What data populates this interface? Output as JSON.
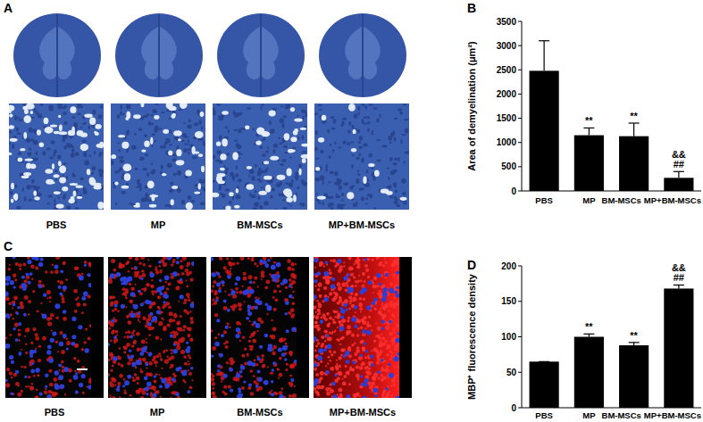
{
  "images": [
    {
      "panel": "A",
      "captions": [
        "PBS",
        "MP",
        "BM-MSCs",
        "MP+BM-MSCs"
      ]
    },
    {
      "panel": "C",
      "captions": [
        "PBS",
        "MP",
        "BM-MSCs",
        "MP+BM-MSCs"
      ]
    }
  ],
  "chart_data": [
    {
      "type": "bar",
      "panel": "B",
      "y_label": "Area of demyelination (μm²)",
      "categories": [
        "PBS",
        "MP",
        "BM-MSCs",
        "MP+BM-MSCs"
      ],
      "values": [
        2480,
        1150,
        1130,
        270
      ],
      "errors": [
        620,
        150,
        270,
        130
      ],
      "color": "#000000",
      "ylim": [
        0,
        3500
      ],
      "yticks": [
        0,
        500,
        1000,
        1500,
        2000,
        2500,
        3000,
        3500
      ],
      "annotations": [
        {
          "category": "MP",
          "text": "**"
        },
        {
          "category": "BM-MSCs",
          "text": "**"
        },
        {
          "category": "MP+BM-MSCs",
          "text": "##"
        },
        {
          "category": "MP+BM-MSCs",
          "text": "&&"
        }
      ]
    },
    {
      "type": "bar",
      "panel": "D",
      "y_label": "MBP⁺ fluorescence density",
      "categories": [
        "PBS",
        "MP",
        "BM-MSCs",
        "MP+BM-MSCs"
      ],
      "values": [
        65,
        100,
        88,
        168
      ],
      "errors": [
        0,
        4,
        4,
        5
      ],
      "color": "#000000",
      "ylim": [
        0,
        200
      ],
      "yticks": [
        0,
        50,
        100,
        150,
        200
      ],
      "annotations": [
        {
          "category": "MP",
          "text": "**"
        },
        {
          "category": "BM-MSCs",
          "text": "**"
        },
        {
          "category": "MP+BM-MSCs",
          "text": "##"
        },
        {
          "category": "MP+BM-MSCs",
          "text": "&&"
        }
      ]
    }
  ]
}
